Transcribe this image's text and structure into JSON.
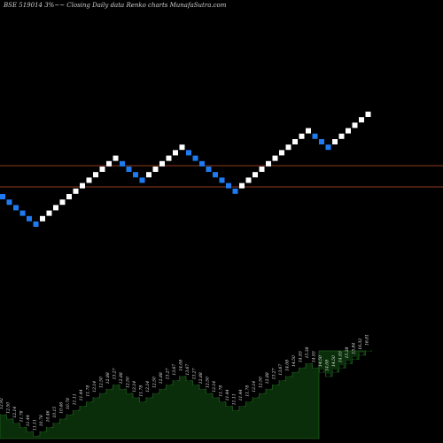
{
  "header": {
    "title": "BSE 519014  3%~~ Closing Daily data  Renko  charts MunafaSutra.com"
  },
  "colors": {
    "background": "#000000",
    "up_brick": "#ffffff",
    "down_brick": "#1e7bf0",
    "reference_line": "#8b3a1e",
    "area_fill": "#0a2e0a",
    "area_stroke": "#1e5a1e"
  },
  "chart_data": [
    {
      "type": "renko",
      "legend": "none",
      "grid": false,
      "brick_direction": [
        -1,
        -1,
        -1,
        -1,
        -1,
        -1,
        1,
        1,
        1,
        1,
        1,
        1,
        1,
        1,
        1,
        1,
        1,
        1,
        -1,
        -1,
        -1,
        -1,
        1,
        1,
        1,
        1,
        1,
        1,
        -1,
        -1,
        -1,
        -1,
        -1,
        -1,
        -1,
        -1,
        1,
        1,
        1,
        1,
        1,
        1,
        1,
        1,
        1,
        1,
        1,
        -1,
        -1,
        -1,
        1,
        1,
        1,
        1,
        1,
        1
      ],
      "reference_lines": 2
    },
    {
      "type": "area",
      "grid": false,
      "value_labels": [
        "12.92",
        "12.50",
        "12.14",
        "11.78",
        "11.44",
        "11.11",
        "10.78",
        "10.46",
        "10.15",
        "10.46",
        "10.78",
        "11.11",
        "11.44",
        "11.78",
        "12.14",
        "12.50",
        "12.88",
        "13.27",
        "12.88",
        "12.50",
        "12.14",
        "11.78",
        "12.14",
        "12.50",
        "12.88",
        "13.27",
        "13.67",
        "14.08",
        "13.67",
        "13.27",
        "12.88",
        "12.50",
        "12.14",
        "11.78",
        "11.44",
        "11.11",
        "11.44",
        "11.78",
        "12.14",
        "12.50",
        "12.88",
        "13.27",
        "13.67",
        "14.08",
        "14.50",
        "14.93",
        "15.38",
        "14.93",
        "14.50",
        "14.08",
        "14.50",
        "14.93",
        "15.38",
        "15.84",
        "16.32",
        "16.81"
      ]
    }
  ]
}
